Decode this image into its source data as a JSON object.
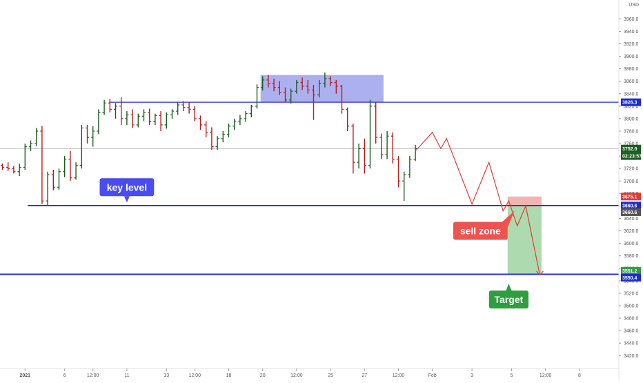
{
  "chart_data": {
    "type": "bar",
    "currency_label": "USD",
    "y_ticks": [
      3420,
      3440,
      3460,
      3480,
      3500,
      3520,
      3540,
      3560,
      3580,
      3600,
      3620,
      3640,
      3660,
      3680,
      3700,
      3720,
      3740,
      3760,
      3780,
      3800,
      3820,
      3840,
      3860,
      3880,
      3900,
      3920,
      3940,
      3960
    ],
    "y_tick_labels": [
      "3420.0",
      "3440.0",
      "3460.0",
      "3480.0",
      "3500.0",
      "3520.0",
      "3540.0",
      "3560.0",
      "3580.0",
      "3600.0",
      "3620.0",
      "3640.0",
      "3660.0",
      "3680.0",
      "3700.0",
      "3720.0",
      "3740.0",
      "3760.0",
      "3780.0",
      "3800.0",
      "3820.0",
      "3840.0",
      "3860.0",
      "3880.0",
      "3900.0",
      "3920.0",
      "3940.0",
      "3960.0"
    ],
    "ylim": [
      3412,
      3972
    ],
    "x_ticks": [
      {
        "label": "2021",
        "bar": 4,
        "bold": true
      },
      {
        "label": "6",
        "bar": 11
      },
      {
        "label": "12:00",
        "bar": 16
      },
      {
        "label": "11",
        "bar": 22
      },
      {
        "label": "13",
        "bar": 29
      },
      {
        "label": "12:00",
        "bar": 34
      },
      {
        "label": "18",
        "bar": 40
      },
      {
        "label": "20",
        "bar": 46
      },
      {
        "label": "12:00",
        "bar": 52
      },
      {
        "label": "25",
        "bar": 58
      },
      {
        "label": "27",
        "bar": 64
      },
      {
        "label": "12:00",
        "bar": 70
      },
      {
        "label": "Feb",
        "bar": 76
      },
      {
        "label": "3",
        "bar": 83
      },
      {
        "label": "5",
        "bar": 90
      },
      {
        "label": "12:00",
        "bar": 96
      },
      {
        "label": "8",
        "bar": 102
      }
    ],
    "ohlc": [
      [
        3725,
        3728,
        3718,
        3722
      ],
      [
        3722,
        3730,
        3716,
        3720
      ],
      [
        3720,
        3724,
        3712,
        3715
      ],
      [
        3715,
        3728,
        3708,
        3722
      ],
      [
        3722,
        3760,
        3718,
        3755
      ],
      [
        3755,
        3765,
        3748,
        3760
      ],
      [
        3760,
        3785,
        3756,
        3780
      ],
      [
        3780,
        3788,
        3663,
        3668
      ],
      [
        3668,
        3715,
        3660,
        3710
      ],
      [
        3710,
        3718,
        3685,
        3690
      ],
      [
        3690,
        3720,
        3686,
        3715
      ],
      [
        3715,
        3740,
        3706,
        3735
      ],
      [
        3735,
        3748,
        3700,
        3705
      ],
      [
        3705,
        3730,
        3702,
        3725
      ],
      [
        3725,
        3790,
        3720,
        3785
      ],
      [
        3785,
        3790,
        3760,
        3770
      ],
      [
        3770,
        3788,
        3755,
        3780
      ],
      [
        3780,
        3815,
        3775,
        3810
      ],
      [
        3810,
        3830,
        3806,
        3825
      ],
      [
        3825,
        3832,
        3810,
        3815
      ],
      [
        3815,
        3825,
        3800,
        3820
      ],
      [
        3820,
        3834,
        3790,
        3800
      ],
      [
        3800,
        3812,
        3790,
        3806
      ],
      [
        3806,
        3815,
        3785,
        3790
      ],
      [
        3790,
        3808,
        3786,
        3804
      ],
      [
        3804,
        3815,
        3796,
        3810
      ],
      [
        3810,
        3816,
        3790,
        3795
      ],
      [
        3795,
        3808,
        3790,
        3805
      ],
      [
        3805,
        3812,
        3780,
        3790
      ],
      [
        3790,
        3810,
        3784,
        3806
      ],
      [
        3806,
        3815,
        3800,
        3812
      ],
      [
        3812,
        3826,
        3806,
        3822
      ],
      [
        3822,
        3828,
        3812,
        3818
      ],
      [
        3818,
        3826,
        3808,
        3815
      ],
      [
        3815,
        3820,
        3796,
        3800
      ],
      [
        3800,
        3805,
        3782,
        3790
      ],
      [
        3790,
        3796,
        3770,
        3778
      ],
      [
        3778,
        3786,
        3750,
        3755
      ],
      [
        3755,
        3772,
        3750,
        3768
      ],
      [
        3768,
        3780,
        3762,
        3775
      ],
      [
        3775,
        3792,
        3770,
        3788
      ],
      [
        3788,
        3800,
        3782,
        3796
      ],
      [
        3796,
        3806,
        3790,
        3800
      ],
      [
        3800,
        3812,
        3795,
        3808
      ],
      [
        3808,
        3822,
        3802,
        3820
      ],
      [
        3820,
        3855,
        3816,
        3850
      ],
      [
        3850,
        3868,
        3845,
        3862
      ],
      [
        3862,
        3870,
        3850,
        3856
      ],
      [
        3856,
        3864,
        3844,
        3850
      ],
      [
        3850,
        3860,
        3838,
        3842
      ],
      [
        3842,
        3850,
        3826,
        3830
      ],
      [
        3830,
        3848,
        3824,
        3844
      ],
      [
        3844,
        3862,
        3840,
        3858
      ],
      [
        3858,
        3866,
        3846,
        3852
      ],
      [
        3852,
        3862,
        3840,
        3846
      ],
      [
        3846,
        3854,
        3798,
        3838
      ],
      [
        3838,
        3862,
        3834,
        3856
      ],
      [
        3856,
        3874,
        3850,
        3864
      ],
      [
        3864,
        3868,
        3852,
        3858
      ],
      [
        3858,
        3862,
        3840,
        3852
      ],
      [
        3852,
        3854,
        3808,
        3815
      ],
      [
        3815,
        3818,
        3780,
        3788
      ],
      [
        3788,
        3792,
        3712,
        3730
      ],
      [
        3730,
        3760,
        3720,
        3752
      ],
      [
        3752,
        3768,
        3712,
        3725
      ],
      [
        3725,
        3830,
        3720,
        3820
      ],
      [
        3820,
        3826,
        3760,
        3770
      ],
      [
        3770,
        3776,
        3735,
        3742
      ],
      [
        3742,
        3780,
        3735,
        3772
      ],
      [
        3772,
        3778,
        3728,
        3735
      ],
      [
        3735,
        3740,
        3690,
        3700
      ],
      [
        3700,
        3715,
        3668,
        3710
      ],
      [
        3710,
        3740,
        3705,
        3735
      ],
      [
        3735,
        3758,
        3732,
        3752
      ]
    ],
    "key_level": 3660.6,
    "upper_level": 3826.3,
    "target_level": 3550.4,
    "current_price": 3752.0,
    "consolidation_box": {
      "bar_start": 46,
      "bar_end": 67,
      "low": 3826,
      "high": 3870
    },
    "projection_path": [
      {
        "bar": 73,
        "price": 3748
      },
      {
        "bar": 76,
        "price": 3778
      },
      {
        "bar": 77.5,
        "price": 3752
      },
      {
        "bar": 78.5,
        "price": 3768
      },
      {
        "bar": 83,
        "price": 3663
      },
      {
        "bar": 86,
        "price": 3730
      },
      {
        "bar": 88.5,
        "price": 3652
      },
      {
        "bar": 89.5,
        "price": 3668
      },
      {
        "bar": 91,
        "price": 3628
      },
      {
        "bar": 92.5,
        "price": 3660
      },
      {
        "bar": 95,
        "price": 3549
      }
    ],
    "trade_zone": {
      "bar_start": 89.3,
      "bar_end": 95.3,
      "entry": 3660.6,
      "stop": 3675.1,
      "target": 3551.2
    },
    "price_tags": [
      {
        "label": "3826.3",
        "price": 3826.3,
        "color": "#1e2bd8"
      },
      {
        "label": "3752.0",
        "price": 3752.0,
        "color": "#1b5e20"
      },
      {
        "label": "02:23:57",
        "price": 3740.0,
        "color": "#1b5e20"
      },
      {
        "label": "3675.1",
        "price": 3675.1,
        "color": "#e53935"
      },
      {
        "label": "3660.6",
        "price": 3660.6,
        "color": "#1e2bd8"
      },
      {
        "label": "3660.6",
        "price": 3650.0,
        "color": "#555555"
      },
      {
        "label": "3551.2",
        "price": 3556.0,
        "color": "#2e9e3e"
      },
      {
        "label": "3550.4",
        "price": 3545.0,
        "color": "#1e2bd8"
      }
    ],
    "annotations": [
      {
        "text": "key level",
        "bar": 22,
        "price": 3690,
        "color": "#4a4cf0",
        "pointer": "down"
      },
      {
        "text": "sell zone",
        "bar": 84.5,
        "price": 3620,
        "color": "#ef5350",
        "pointer": "up"
      },
      {
        "text": "Target",
        "bar": 89.5,
        "price": 3510,
        "color": "#2e9e3e",
        "pointer": "up"
      }
    ],
    "colors": {
      "up": "#1b5e20",
      "down": "#b71c1c",
      "level": "#1e2bd8",
      "projection": "#e53935",
      "box": "#7b7fe6",
      "stop_zone": "#ef9a9a",
      "target_zone": "#81c784"
    }
  }
}
